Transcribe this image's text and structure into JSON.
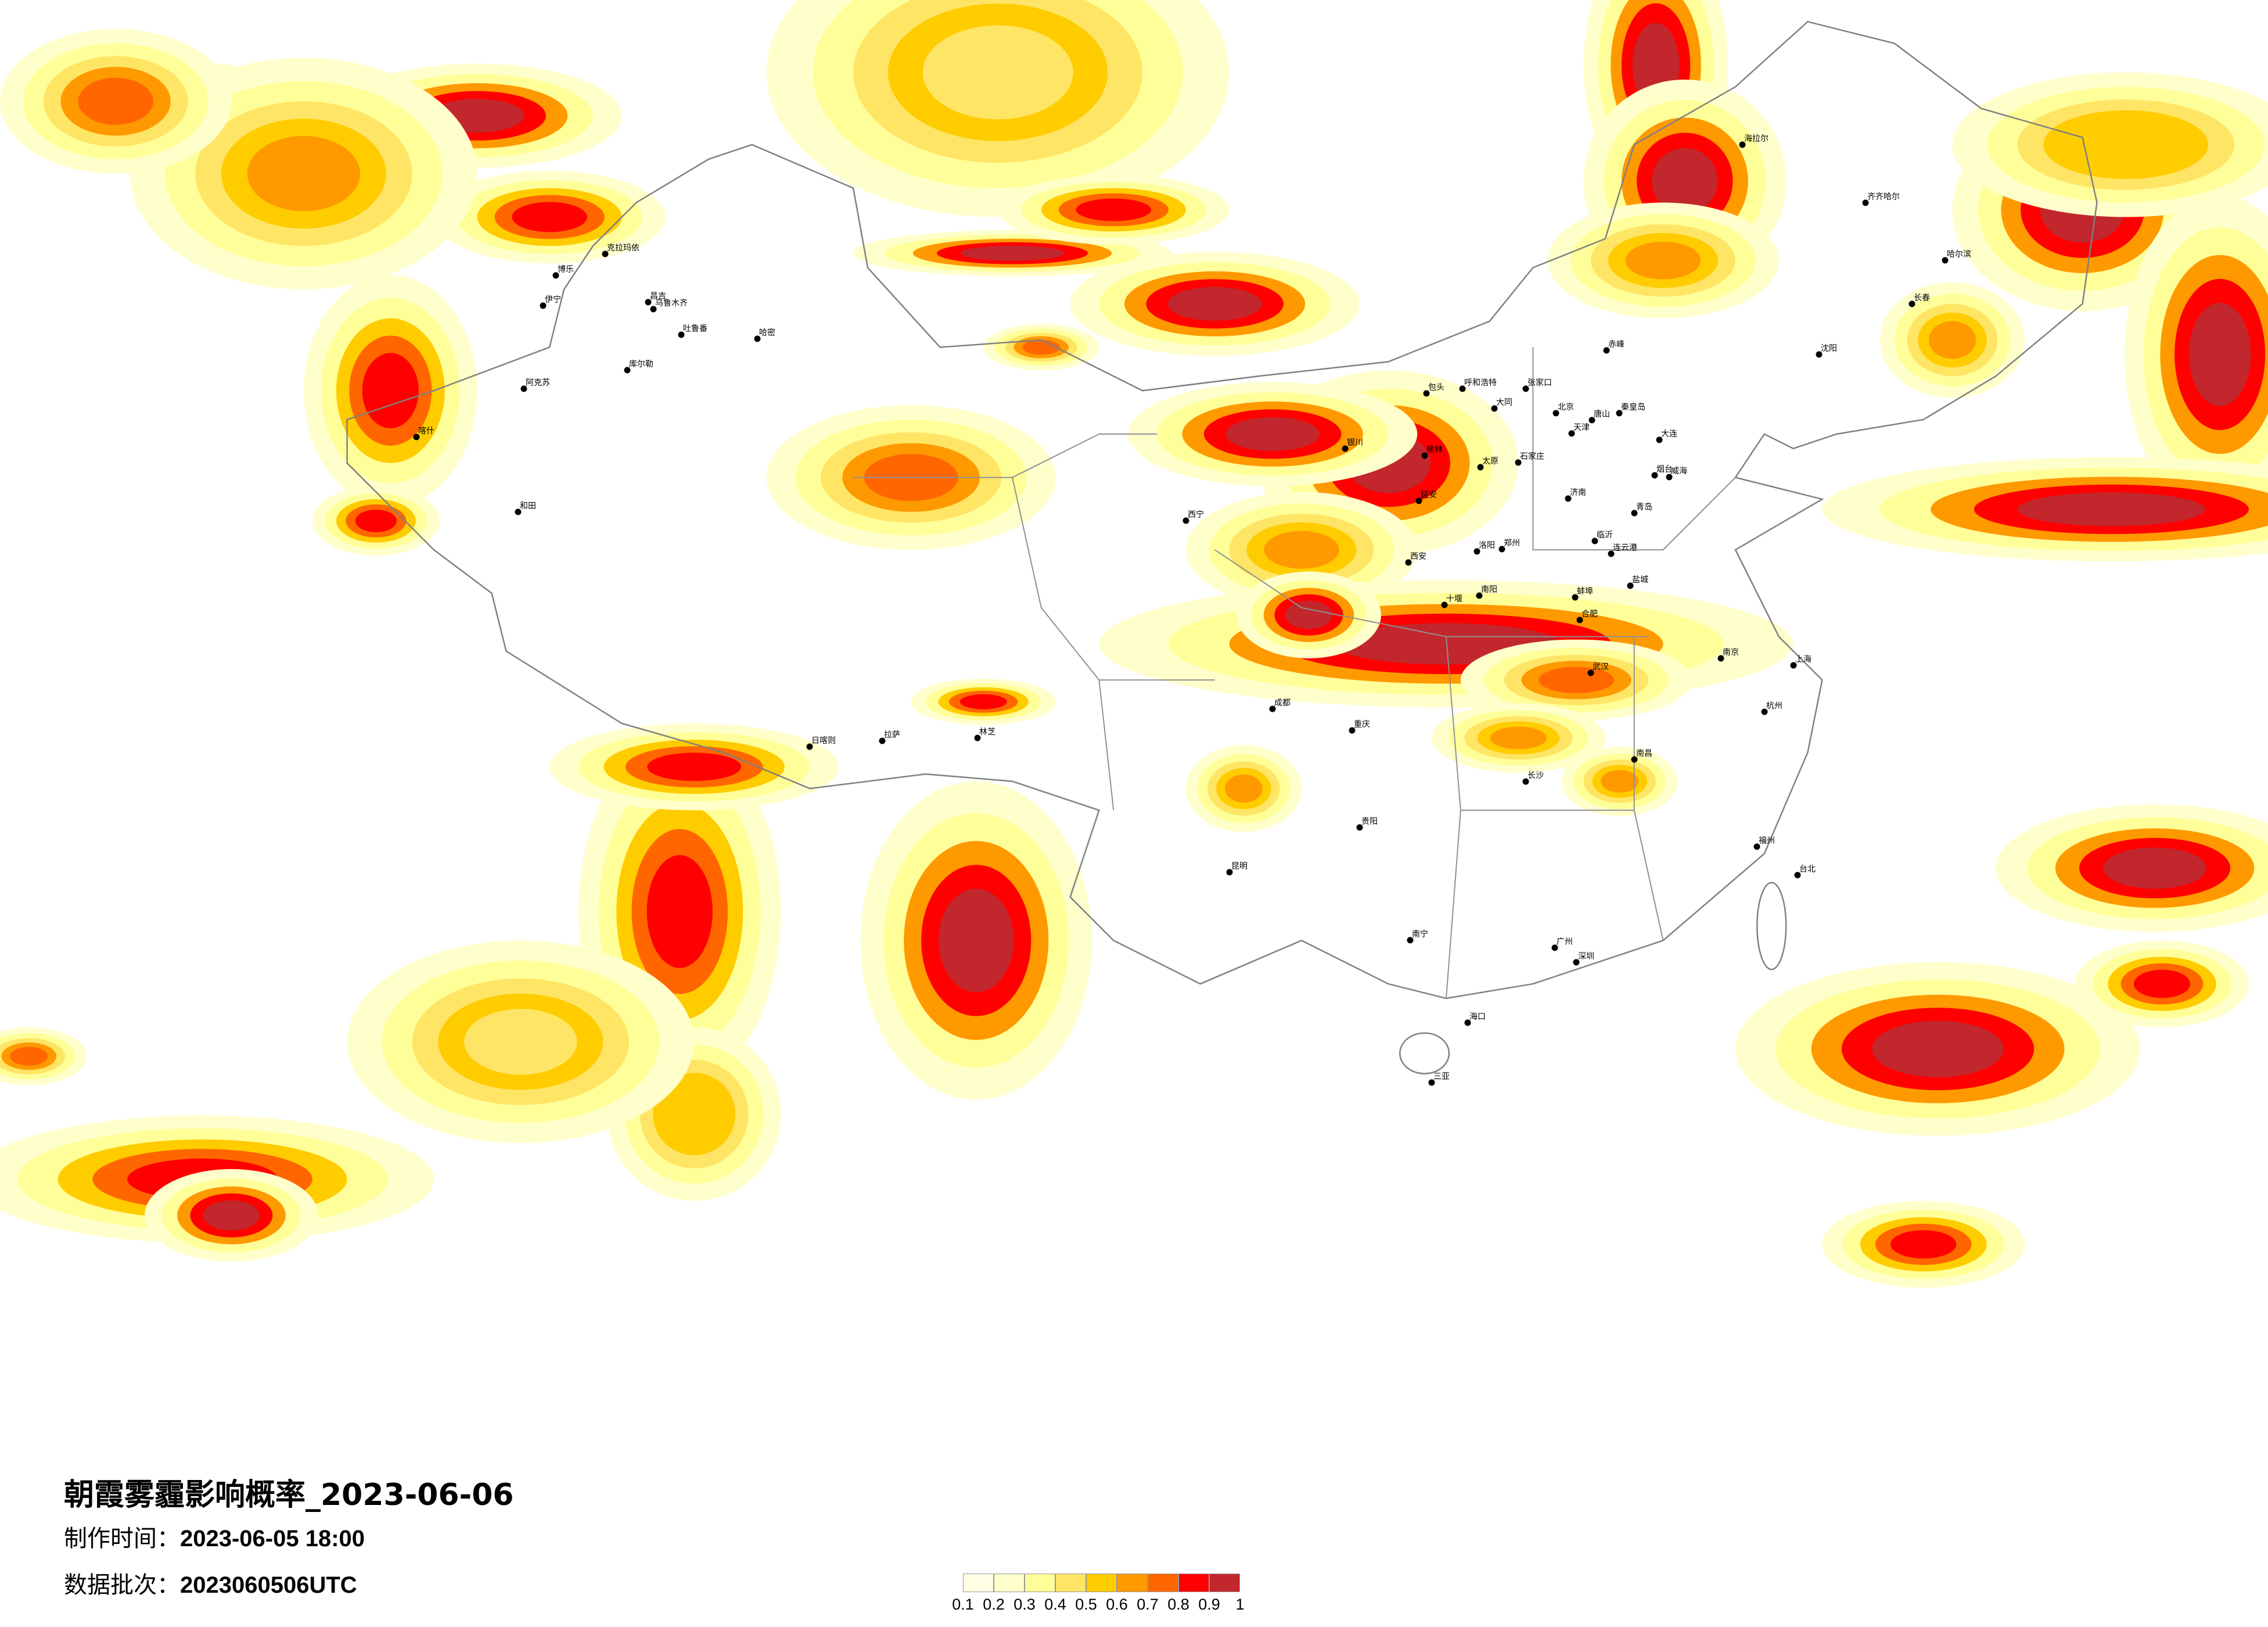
{
  "title": "朝霞雾霾影响概率_2023-06-06",
  "production_time_label": "制作时间：",
  "production_time": "2023-06-05 18:00",
  "data_batch_label": "数据批次：",
  "data_batch": "2023060506UTC",
  "legend": {
    "colors": [
      "#ffffe6",
      "#ffffcc",
      "#ffff99",
      "#ffe566",
      "#ffcc00",
      "#ff9900",
      "#ff6600",
      "#ff0000",
      "#c1272d"
    ],
    "labels": [
      "0.1",
      "0.2",
      "0.3",
      "0.4",
      "0.5",
      "0.6",
      "0.7",
      "0.8",
      "0.9",
      "1"
    ]
  },
  "map": {
    "border_color": "#808080",
    "cities": [
      "北京",
      "天津",
      "石家庄",
      "太原",
      "济南",
      "郑州",
      "西安",
      "青岛",
      "大连",
      "呼和浩特",
      "包头",
      "张家口",
      "唐山",
      "秦皇岛",
      "赤峰",
      "大同",
      "洛阳",
      "延安",
      "榆林",
      "南阳",
      "十堰",
      "临沂",
      "连云港",
      "盐城",
      "蚌埠",
      "烟台",
      "威海",
      "合肥",
      "克拉玛依",
      "博乐",
      "伊宁",
      "昌吉",
      "乌鲁木齐",
      "吐鲁番",
      "哈密",
      "库尔勒",
      "阿克苏",
      "和田",
      "喀什",
      "拉萨",
      "日喀则",
      "林芝",
      "西宁",
      "银川",
      "成都",
      "重庆",
      "昆明",
      "贵阳",
      "南宁",
      "广州",
      "深圳",
      "海口",
      "三亚",
      "长沙",
      "武汉",
      "南京",
      "上海",
      "杭州",
      "福州",
      "南昌",
      "台北",
      "哈尔滨",
      "长春",
      "沈阳",
      "齐齐哈尔",
      "海拉尔"
    ]
  }
}
